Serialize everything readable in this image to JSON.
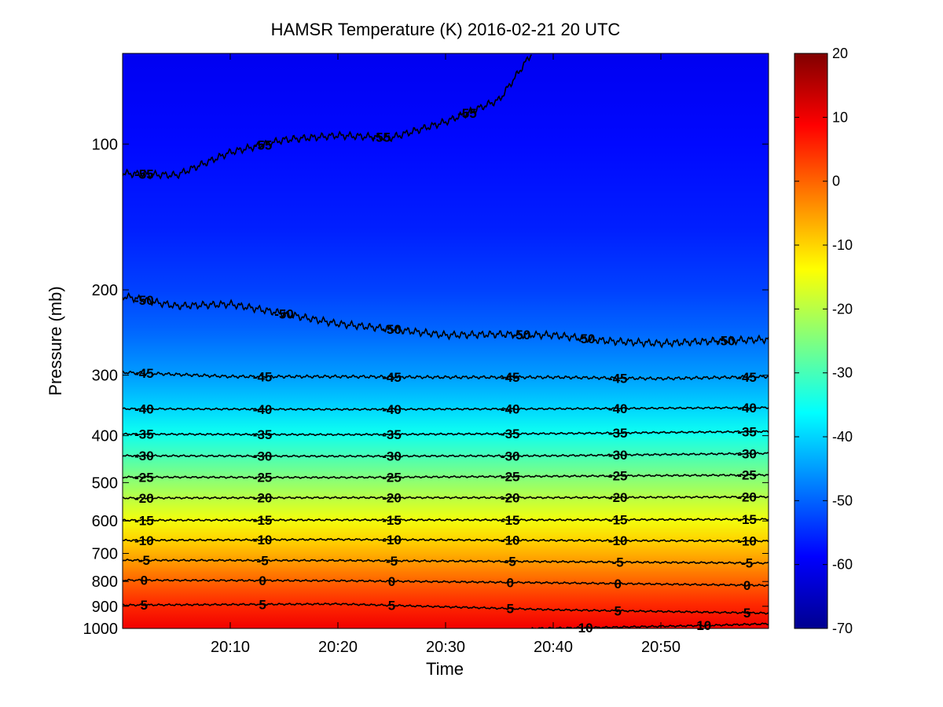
{
  "chart_data": {
    "type": "heatmap",
    "title": "HAMSR  Temperature (K) 2016-02-21 20 UTC",
    "xlabel": "Time",
    "ylabel": "Pressure (mb)",
    "x_unit": "minutes after 20:00 UTC",
    "xlim": [
      0,
      60
    ],
    "ylim": [
      1000,
      65
    ],
    "y_scale": "log",
    "x_ticks": [
      {
        "value": 10,
        "label": "20:10"
      },
      {
        "value": 20,
        "label": "20:20"
      },
      {
        "value": 30,
        "label": "20:30"
      },
      {
        "value": 40,
        "label": "20:40"
      },
      {
        "value": 50,
        "label": "20:50"
      }
    ],
    "y_ticks": [
      {
        "value": 100,
        "label": "100"
      },
      {
        "value": 200,
        "label": "200"
      },
      {
        "value": 300,
        "label": "300"
      },
      {
        "value": 400,
        "label": "400"
      },
      {
        "value": 500,
        "label": "500"
      },
      {
        "value": 600,
        "label": "600"
      },
      {
        "value": 700,
        "label": "700"
      },
      {
        "value": 800,
        "label": "800"
      },
      {
        "value": 900,
        "label": "900"
      },
      {
        "value": 1000,
        "label": "1000"
      }
    ],
    "colorbar": {
      "colormap": "jet",
      "range": [
        -70,
        20
      ],
      "ticks": [
        "20",
        "10",
        "0",
        "-10",
        "-20",
        "-30",
        "-40",
        "-50",
        "-60",
        "-70"
      ]
    },
    "temperature_profile": [
      {
        "pressure": 65,
        "temp": -60
      },
      {
        "pressure": 100,
        "temp": -58
      },
      {
        "pressure": 150,
        "temp": -56
      },
      {
        "pressure": 200,
        "temp": -53
      },
      {
        "pressure": 240,
        "temp": -50
      },
      {
        "pressure": 300,
        "temp": -45
      },
      {
        "pressure": 350,
        "temp": -40
      },
      {
        "pressure": 395,
        "temp": -35
      },
      {
        "pressure": 440,
        "temp": -30
      },
      {
        "pressure": 485,
        "temp": -25
      },
      {
        "pressure": 535,
        "temp": -20
      },
      {
        "pressure": 595,
        "temp": -15
      },
      {
        "pressure": 655,
        "temp": -10
      },
      {
        "pressure": 725,
        "temp": -5
      },
      {
        "pressure": 800,
        "temp": 0
      },
      {
        "pressure": 890,
        "temp": 5
      },
      {
        "pressure": 1000,
        "temp": 10
      }
    ],
    "contours": [
      {
        "level": -55,
        "label": "-55",
        "points": [
          [
            0,
            115
          ],
          [
            5,
            116
          ],
          [
            10,
            104
          ],
          [
            15,
            98
          ],
          [
            20,
            96
          ],
          [
            25,
            97
          ],
          [
            30,
            90
          ],
          [
            35,
            81
          ],
          [
            38,
            65
          ]
        ],
        "label_x": [
          2,
          13,
          24,
          32
        ]
      },
      {
        "level": -50,
        "label": "-50",
        "points": [
          [
            0,
            206
          ],
          [
            5,
            216
          ],
          [
            10,
            214
          ],
          [
            15,
            224
          ],
          [
            20,
            235
          ],
          [
            25,
            241
          ],
          [
            30,
            248
          ],
          [
            35,
            247
          ],
          [
            40,
            248
          ],
          [
            45,
            255
          ],
          [
            50,
            258
          ],
          [
            55,
            255
          ],
          [
            60,
            253
          ]
        ],
        "label_x": [
          2,
          15,
          25,
          37,
          43,
          56
        ]
      },
      {
        "level": -45,
        "label": "-45",
        "points": [
          [
            0,
            296
          ],
          [
            10,
            302
          ],
          [
            20,
            302
          ],
          [
            30,
            303
          ],
          [
            40,
            303
          ],
          [
            50,
            305
          ],
          [
            60,
            302
          ]
        ],
        "label_x": [
          2,
          13,
          25,
          36,
          46,
          58
        ]
      },
      {
        "level": -40,
        "label": "-40",
        "points": [
          [
            0,
            352
          ],
          [
            20,
            353
          ],
          [
            40,
            352
          ],
          [
            60,
            350
          ]
        ],
        "label_x": [
          2,
          13,
          25,
          36,
          46,
          58
        ]
      },
      {
        "level": -35,
        "label": "-35",
        "points": [
          [
            0,
            397
          ],
          [
            20,
            398
          ],
          [
            40,
            396
          ],
          [
            60,
            392
          ]
        ],
        "label_x": [
          2,
          13,
          25,
          36,
          46,
          58
        ]
      },
      {
        "level": -30,
        "label": "-30",
        "points": [
          [
            0,
            440
          ],
          [
            20,
            441
          ],
          [
            40,
            440
          ],
          [
            60,
            435
          ]
        ],
        "label_x": [
          2,
          13,
          25,
          36,
          46,
          58
        ]
      },
      {
        "level": -25,
        "label": "-25",
        "points": [
          [
            0,
            487
          ],
          [
            20,
            488
          ],
          [
            40,
            485
          ],
          [
            60,
            482
          ]
        ],
        "label_x": [
          2,
          13,
          25,
          36,
          46,
          58
        ]
      },
      {
        "level": -20,
        "label": "-20",
        "points": [
          [
            0,
            538
          ],
          [
            20,
            537
          ],
          [
            40,
            537
          ],
          [
            60,
            535
          ]
        ],
        "label_x": [
          2,
          13,
          25,
          36,
          46,
          58
        ]
      },
      {
        "level": -15,
        "label": "-15",
        "points": [
          [
            0,
            598
          ],
          [
            20,
            597
          ],
          [
            40,
            597
          ],
          [
            60,
            595
          ]
        ],
        "label_x": [
          2,
          13,
          25,
          36,
          46,
          58
        ]
      },
      {
        "level": -10,
        "label": "-10",
        "points": [
          [
            0,
            658
          ],
          [
            20,
            655
          ],
          [
            40,
            658
          ],
          [
            60,
            660
          ]
        ],
        "label_x": [
          2,
          13,
          25,
          36,
          46,
          58
        ]
      },
      {
        "level": -5,
        "label": "-5",
        "points": [
          [
            0,
            723
          ],
          [
            20,
            724
          ],
          [
            40,
            728
          ],
          [
            60,
            733
          ]
        ],
        "label_x": [
          2,
          13,
          25,
          36,
          46,
          58
        ]
      },
      {
        "level": 0,
        "label": "0",
        "points": [
          [
            0,
            795
          ],
          [
            20,
            797
          ],
          [
            40,
            805
          ],
          [
            60,
            815
          ]
        ],
        "label_x": [
          2,
          13,
          25,
          36,
          46,
          58
        ]
      },
      {
        "level": 5,
        "label": "5",
        "points": [
          [
            0,
            895
          ],
          [
            20,
            890
          ],
          [
            40,
            915
          ],
          [
            60,
            930
          ]
        ],
        "label_x": [
          2,
          13,
          25,
          36,
          46,
          58
        ]
      },
      {
        "level": 10,
        "label": "10",
        "points": [
          [
            38,
            1000
          ],
          [
            45,
            995
          ],
          [
            55,
            985
          ],
          [
            60,
            978
          ]
        ],
        "label_x": [
          43,
          54
        ]
      }
    ]
  }
}
